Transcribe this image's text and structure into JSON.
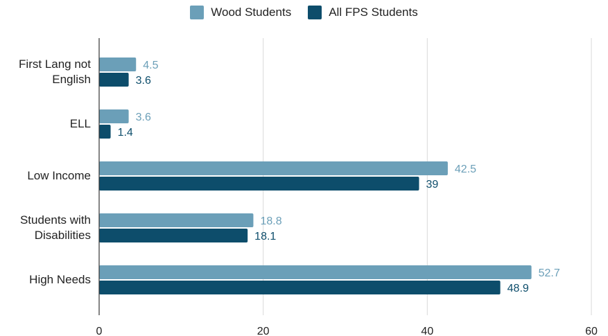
{
  "chart_data": {
    "type": "bar",
    "orientation": "horizontal",
    "categories": [
      "First Lang not English",
      "ELL",
      "Low Income",
      "Students with Disabilities",
      "High Needs"
    ],
    "category_lines": [
      [
        "First Lang not",
        "English"
      ],
      [
        "ELL"
      ],
      [
        "Low Income"
      ],
      [
        "Students with",
        "Disabilities"
      ],
      [
        "High Needs"
      ]
    ],
    "series": [
      {
        "name": "Wood Students",
        "color": "#6b9fb8",
        "values": [
          4.5,
          3.6,
          42.5,
          18.8,
          52.7
        ],
        "labels": [
          "4.5",
          "3.6",
          "42.5",
          "18.8",
          "52.7"
        ]
      },
      {
        "name": "All FPS Students",
        "color": "#0d4d6b",
        "values": [
          3.6,
          1.4,
          39,
          18.1,
          48.9
        ],
        "labels": [
          "3.6",
          "1.4",
          "39",
          "18.1",
          "48.9"
        ]
      }
    ],
    "xlim": [
      0,
      60
    ],
    "xticks": [
      0,
      20,
      40,
      60
    ],
    "xtick_labels": [
      "0",
      "20",
      "40",
      "60"
    ],
    "grid": "vertical",
    "legend_position": "top"
  }
}
